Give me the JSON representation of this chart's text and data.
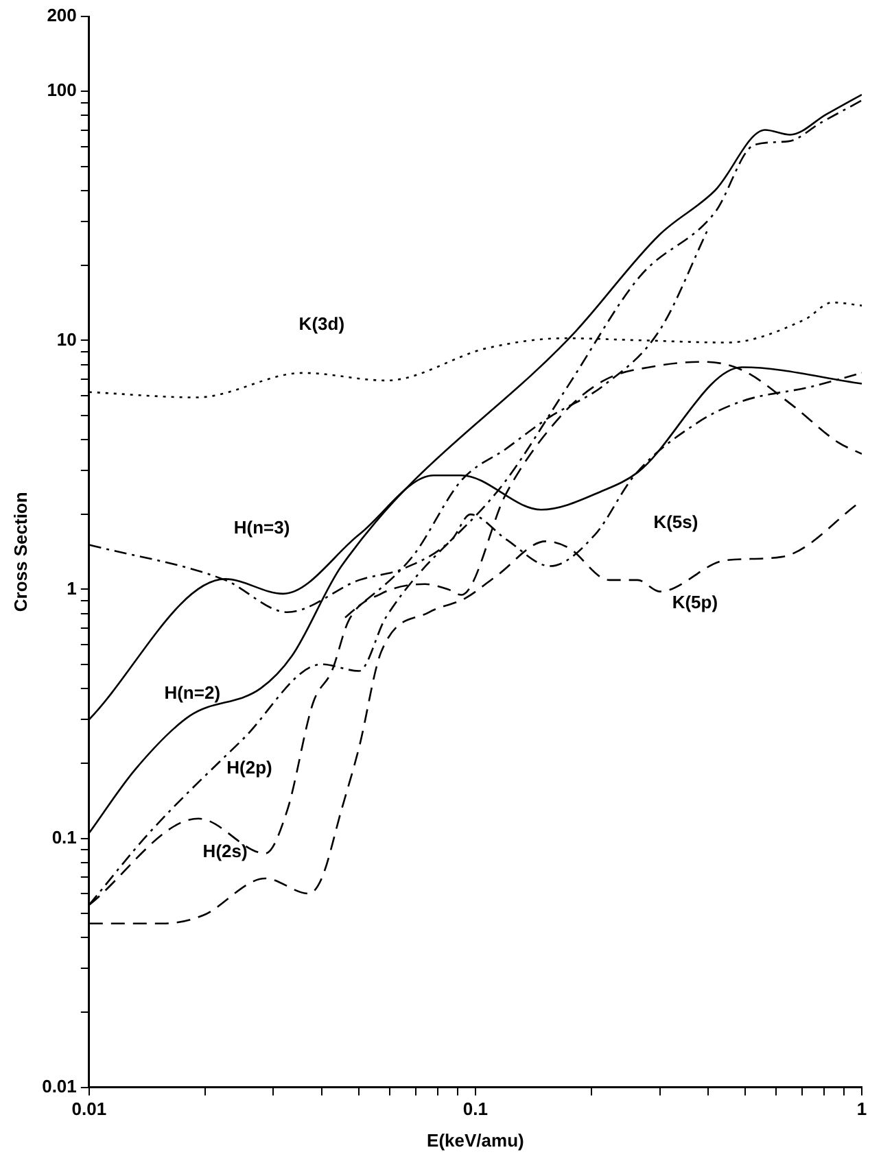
{
  "chart_data": {
    "type": "line",
    "xlabel": "E(keV/amu)",
    "ylabel": "Cross Section",
    "log": "xy",
    "grid": false,
    "legend": false,
    "marker": "none",
    "xlim": [
      0.01,
      1
    ],
    "ylim": [
      0.01,
      200
    ],
    "xticks": [
      0.01,
      {
        "value": 0.02,
        "label": null
      },
      {
        "value": 0.03,
        "label": null
      },
      {
        "value": 0.04,
        "label": null
      },
      {
        "value": 0.05,
        "label": null
      },
      {
        "value": 0.06,
        "label": null
      },
      {
        "value": 0.07,
        "label": null
      },
      {
        "value": 0.08,
        "label": null
      },
      {
        "value": 0.09,
        "label": null
      },
      0.1,
      {
        "value": 0.2,
        "label": null
      },
      {
        "value": 0.3,
        "label": null
      },
      {
        "value": 0.4,
        "label": null
      },
      {
        "value": 0.5,
        "label": null
      },
      {
        "value": 0.6,
        "label": null
      },
      {
        "value": 0.7,
        "label": null
      },
      {
        "value": 0.8,
        "label": null
      },
      {
        "value": 0.9,
        "label": null
      },
      1
    ],
    "yticks": [
      0.01,
      {
        "value": 0.02,
        "label": null
      },
      {
        "value": 0.03,
        "label": null
      },
      {
        "value": 0.04,
        "label": null
      },
      {
        "value": 0.05,
        "label": null
      },
      {
        "value": 0.06,
        "label": null
      },
      {
        "value": 0.07,
        "label": null
      },
      {
        "value": 0.08,
        "label": null
      },
      {
        "value": 0.09,
        "label": null
      },
      0.1,
      {
        "value": 0.2,
        "label": null
      },
      {
        "value": 0.3,
        "label": null
      },
      {
        "value": 0.4,
        "label": null
      },
      {
        "value": 0.5,
        "label": null
      },
      {
        "value": 0.6,
        "label": null
      },
      {
        "value": 0.7,
        "label": null
      },
      {
        "value": 0.8,
        "label": null
      },
      {
        "value": 0.9,
        "label": null
      },
      1,
      {
        "value": 2,
        "label": null
      },
      {
        "value": 3,
        "label": null
      },
      {
        "value": 4,
        "label": null
      },
      {
        "value": 5,
        "label": null
      },
      {
        "value": 6,
        "label": null
      },
      {
        "value": 7,
        "label": null
      },
      {
        "value": 8,
        "label": null
      },
      {
        "value": 9,
        "label": null
      },
      10,
      {
        "value": 20,
        "label": null
      },
      {
        "value": 30,
        "label": null
      },
      {
        "value": 40,
        "label": null
      },
      {
        "value": 50,
        "label": null
      },
      {
        "value": 60,
        "label": null
      },
      {
        "value": 70,
        "label": null
      },
      {
        "value": 80,
        "label": null
      },
      {
        "value": 90,
        "label": null
      },
      100,
      200
    ],
    "series": [
      {
        "name": "K(3d)",
        "color": "#000000",
        "line_style": "dotted",
        "x": [
          0.01,
          0.019,
          0.0358,
          0.0589,
          0.107,
          0.17,
          0.271,
          0.447,
          0.71,
          0.84,
          1
        ],
        "values": [
          6.2,
          5.9,
          7.4,
          6.9,
          9.3,
          10.2,
          10,
          9.8,
          12.1,
          14.2,
          13.8
        ]
      },
      {
        "name": "H(n=3)",
        "color": "#000000",
        "line_style": "solid",
        "x": [
          0.01,
          0.0225,
          0.0318,
          0.05,
          0.078,
          0.092,
          0.148,
          0.215,
          0.263,
          0.49,
          1
        ],
        "values": [
          0.3,
          1.1,
          0.96,
          1.66,
          2.87,
          2.87,
          2.09,
          2.5,
          2.95,
          7.8,
          6.7
        ]
      },
      {
        "name": "H(n=2)",
        "color": "#000000",
        "line_style": "solid",
        "x": [
          0.01,
          0.0132,
          0.0182,
          0.0278,
          0.0335,
          0.045,
          0.182,
          0.299,
          0.417,
          0.562,
          0.653,
          0.81,
          1
        ],
        "values": [
          0.105,
          0.19,
          0.31,
          0.4,
          0.54,
          1.24,
          10.9,
          26.5,
          40,
          70,
          67,
          81,
          97
        ]
      },
      {
        "name": "H(2p)",
        "color": "#000000",
        "line_style": "dashdot",
        "x": [
          0.01,
          0.0143,
          0.025,
          0.04,
          0.05,
          0.0586,
          0.12,
          0.174,
          0.266,
          0.417,
          0.527,
          0.645,
          0.785,
          1
        ],
        "values": [
          0.054,
          0.105,
          0.25,
          0.5,
          0.47,
          0.77,
          2.74,
          6.6,
          18,
          32.7,
          61,
          63,
          75,
          92
        ]
      },
      {
        "name": "H(2s)",
        "color": "#000000",
        "line_style": "dashed",
        "x": [
          0.01,
          0.0192,
          0.0286,
          0.0326,
          0.038,
          0.0425,
          0.047,
          0.057,
          0.074,
          0.085,
          0.092,
          0.12,
          0.165,
          0.215,
          0.296,
          0.39,
          0.49,
          0.66,
          0.867,
          1
        ],
        "values": [
          0.054,
          0.12,
          0.087,
          0.13,
          0.35,
          0.47,
          0.75,
          0.96,
          1.05,
          1.0,
          0.95,
          2.42,
          4.9,
          6.9,
          7.9,
          8.2,
          7.6,
          5.5,
          3.9,
          3.5
        ]
      },
      {
        "name": "K(5s)",
        "color": "#000000",
        "line_style": "dashdot",
        "x": [
          0.01,
          0.0225,
          0.0326,
          0.05,
          0.065,
          0.087,
          0.097,
          0.12,
          0.156,
          0.204,
          0.258,
          0.378,
          0.49,
          0.735,
          1
        ],
        "values": [
          1.51,
          1.09,
          0.81,
          1.09,
          1.21,
          1.59,
          2.0,
          1.59,
          1.24,
          1.66,
          2.87,
          4.7,
          5.7,
          6.5,
          7.4
        ]
      },
      {
        "name": "K(5p)",
        "color": "#000000",
        "line_style": "dashed",
        "x": [
          0.01,
          0.0155,
          0.0197,
          0.0286,
          0.037,
          0.04,
          0.045,
          0.05,
          0.057,
          0.076,
          0.094,
          0.114,
          0.152,
          0.174,
          0.222,
          0.263,
          0.3,
          0.446,
          0.62,
          1
        ],
        "values": [
          0.0455,
          0.0455,
          0.049,
          0.069,
          0.06,
          0.069,
          0.13,
          0.232,
          0.56,
          0.81,
          0.92,
          1.14,
          1.56,
          1.47,
          1.09,
          1.09,
          0.98,
          1.31,
          1.35,
          2.27
        ]
      },
      {
        "color": "#000000",
        "line_style": "dashdot",
        "x": [
          0.046,
          0.0686,
          0.092,
          0.12,
          0.155,
          0.215,
          0.3,
          0.4
        ],
        "values": [
          0.77,
          1.35,
          2.74,
          3.67,
          4.9,
          6.6,
          11,
          28
        ]
      }
    ]
  }
}
